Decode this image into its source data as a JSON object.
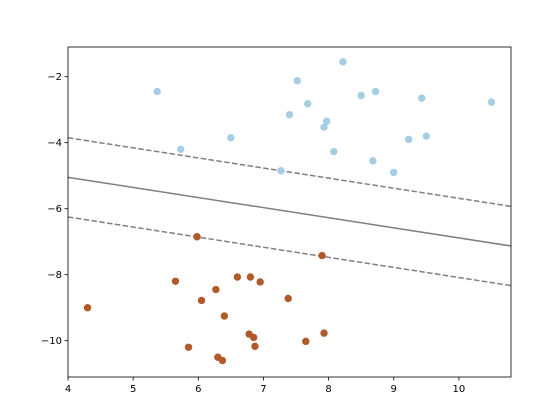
{
  "chart_data": {
    "type": "scatter",
    "title": "",
    "xlabel": "",
    "ylabel": "",
    "xlim": [
      4.0,
      10.8
    ],
    "ylim": [
      -11.1,
      -1.1
    ],
    "xticks": [
      4,
      5,
      6,
      7,
      8,
      9,
      10
    ],
    "yticks": [
      -10,
      -8,
      -6,
      -4,
      -2
    ],
    "xtick_labels": [
      "4",
      "5",
      "6",
      "7",
      "8",
      "9",
      "10"
    ],
    "ytick_labels": [
      "−10",
      "−8",
      "−6",
      "−4",
      "−2"
    ],
    "grid": false,
    "series": [
      {
        "color": "#a6cee3",
        "points": [
          [
            5.37,
            -2.45
          ],
          [
            5.73,
            -4.2
          ],
          [
            6.5,
            -3.85
          ],
          [
            7.27,
            -4.85
          ],
          [
            7.4,
            -3.15
          ],
          [
            7.52,
            -2.12
          ],
          [
            7.68,
            -2.82
          ],
          [
            7.93,
            -3.53
          ],
          [
            7.97,
            -3.35
          ],
          [
            8.08,
            -4.27
          ],
          [
            8.22,
            -1.55
          ],
          [
            8.5,
            -2.57
          ],
          [
            8.68,
            -4.55
          ],
          [
            8.72,
            -2.45
          ],
          [
            9.0,
            -4.9
          ],
          [
            9.23,
            -3.9
          ],
          [
            9.43,
            -2.65
          ],
          [
            9.5,
            -3.8
          ],
          [
            10.5,
            -2.77
          ]
        ]
      },
      {
        "color": "#b15928",
        "points": [
          [
            4.3,
            -9.0
          ],
          [
            5.65,
            -8.2
          ],
          [
            5.85,
            -10.2
          ],
          [
            5.98,
            -6.85
          ],
          [
            6.05,
            -8.78
          ],
          [
            6.27,
            -8.45
          ],
          [
            6.3,
            -10.5
          ],
          [
            6.37,
            -10.6
          ],
          [
            6.4,
            -9.25
          ],
          [
            6.6,
            -8.07
          ],
          [
            6.78,
            -9.8
          ],
          [
            6.8,
            -8.07
          ],
          [
            6.85,
            -9.9
          ],
          [
            6.87,
            -10.17
          ],
          [
            6.95,
            -8.22
          ],
          [
            7.38,
            -8.72
          ],
          [
            7.65,
            -10.02
          ],
          [
            7.9,
            -7.42
          ],
          [
            7.93,
            -9.77
          ]
        ]
      }
    ],
    "lines": [
      {
        "style": "solid",
        "color": "#7f7f7f",
        "y_at_xmin": -5.05,
        "y_at_xmax": -7.13
      },
      {
        "style": "dashed",
        "color": "#7f7f7f",
        "y_at_xmin": -3.85,
        "y_at_xmax": -5.93
      },
      {
        "style": "dashed",
        "color": "#7f7f7f",
        "y_at_xmin": -6.25,
        "y_at_xmax": -8.33
      }
    ]
  }
}
